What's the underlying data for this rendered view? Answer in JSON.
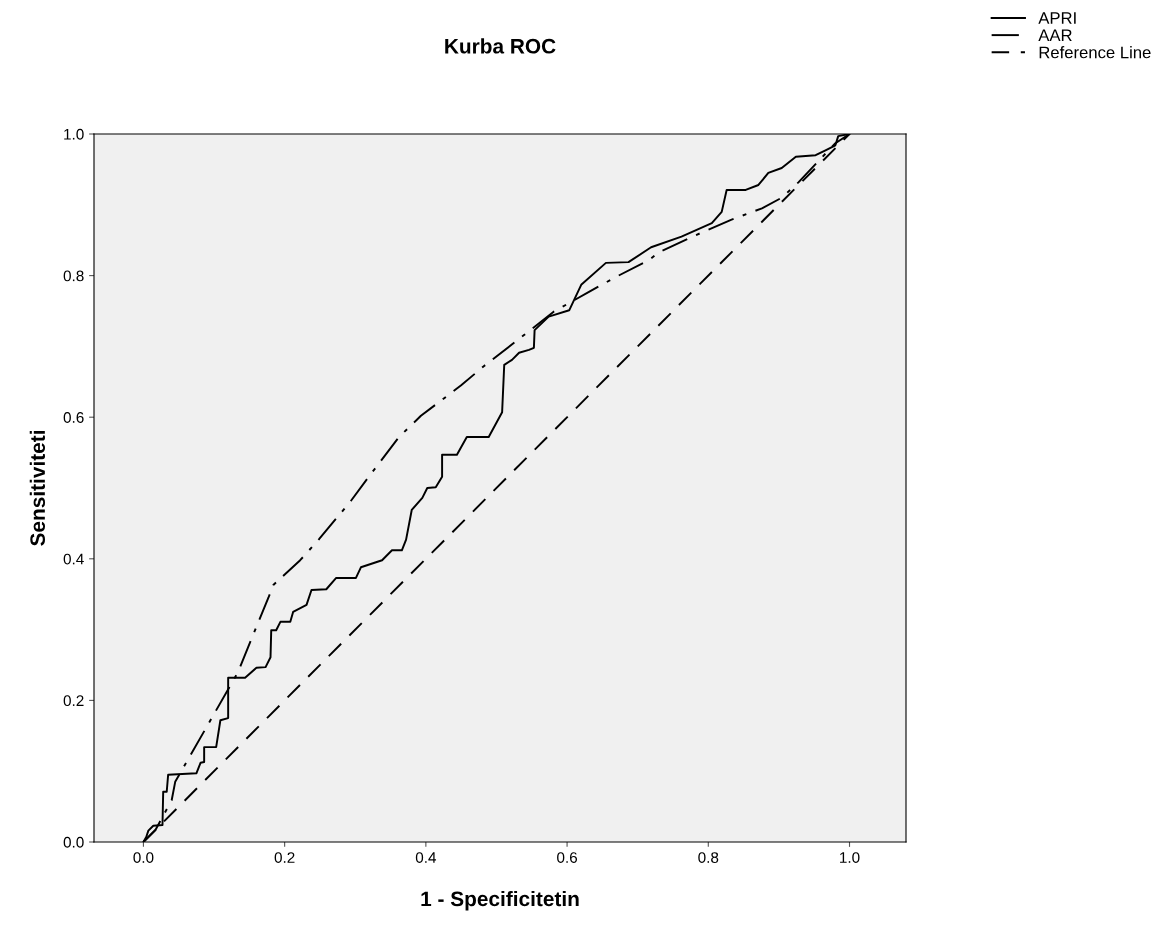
{
  "chart_data": {
    "type": "line",
    "title": "Kurba ROC",
    "xlabel": "1 - Specificitetin",
    "ylabel": "Sensitiviteti",
    "xlim": [
      -0.07,
      1.08
    ],
    "ylim": [
      0,
      1.0
    ],
    "xticks": [
      {
        "value": 0,
        "label": "0.0"
      },
      {
        "value": 0.2,
        "label": "0.2"
      },
      {
        "value": 0.4,
        "label": "0.4"
      },
      {
        "value": 0.6,
        "label": "0.6"
      },
      {
        "value": 0.8,
        "label": "0.8"
      },
      {
        "value": 1.0,
        "label": "1.0"
      }
    ],
    "yticks": [
      {
        "value": 0,
        "label": "0.0"
      },
      {
        "value": 0.2,
        "label": "0.2"
      },
      {
        "value": 0.4,
        "label": "0.4"
      },
      {
        "value": 0.6,
        "label": "0.6"
      },
      {
        "value": 0.8,
        "label": "0.8"
      },
      {
        "value": 1.0,
        "label": "1.0"
      }
    ],
    "grid": false,
    "legend": "top right",
    "marker": "none",
    "series": [
      {
        "name": "APRI",
        "color": "#000000",
        "line_style": "solid",
        "x": [
          0,
          0.004,
          0.007,
          0.014,
          0.027,
          0.028,
          0.033,
          0.035,
          0.075,
          0.081,
          0.086,
          0.086,
          0.103,
          0.109,
          0.12,
          0.12,
          0.144,
          0.16,
          0.173,
          0.18,
          0.181,
          0.188,
          0.194,
          0.208,
          0.212,
          0.231,
          0.238,
          0.259,
          0.273,
          0.301,
          0.308,
          0.338,
          0.352,
          0.366,
          0.372,
          0.38,
          0.395,
          0.402,
          0.414,
          0.423,
          0.423,
          0.444,
          0.458,
          0.489,
          0.508,
          0.511,
          0.522,
          0.532,
          0.546,
          0.553,
          0.554,
          0.574,
          0.603,
          0.62,
          0.655,
          0.687,
          0.719,
          0.762,
          0.805,
          0.819,
          0.826,
          0.853,
          0.871,
          0.885,
          0.904,
          0.924,
          0.952,
          0.966,
          0.98,
          0.984,
          1.0
        ],
        "values": [
          0,
          0.007,
          0.016,
          0.023,
          0.024,
          0.071,
          0.071,
          0.095,
          0.097,
          0.112,
          0.113,
          0.134,
          0.134,
          0.172,
          0.175,
          0.232,
          0.232,
          0.246,
          0.247,
          0.261,
          0.299,
          0.299,
          0.311,
          0.311,
          0.325,
          0.335,
          0.356,
          0.357,
          0.373,
          0.373,
          0.388,
          0.398,
          0.412,
          0.412,
          0.427,
          0.469,
          0.486,
          0.5,
          0.501,
          0.516,
          0.547,
          0.547,
          0.572,
          0.572,
          0.607,
          0.674,
          0.681,
          0.691,
          0.695,
          0.698,
          0.723,
          0.742,
          0.751,
          0.787,
          0.818,
          0.819,
          0.84,
          0.855,
          0.874,
          0.89,
          0.921,
          0.921,
          0.928,
          0.945,
          0.952,
          0.968,
          0.97,
          0.977,
          0.984,
          0.997,
          1.0
        ]
      },
      {
        "name": "AAR",
        "color": "#000000",
        "line_style": "dashdot",
        "x": [
          0,
          0.017,
          0.04,
          0.045,
          0.134,
          0.16,
          0.177,
          0.184,
          0.222,
          0.249,
          0.294,
          0.32,
          0.362,
          0.393,
          0.45,
          0.482,
          0.539,
          0.581,
          0.631,
          0.669,
          0.716,
          0.73,
          0.782,
          0.833,
          0.876,
          0.904,
          0.928,
          0.96,
          0.98,
          1.0
        ],
        "values": [
          0,
          0.017,
          0.059,
          0.085,
          0.24,
          0.304,
          0.345,
          0.363,
          0.398,
          0.428,
          0.482,
          0.517,
          0.572,
          0.602,
          0.645,
          0.672,
          0.716,
          0.749,
          0.777,
          0.798,
          0.822,
          0.833,
          0.857,
          0.879,
          0.895,
          0.91,
          0.932,
          0.966,
          0.987,
          1.0
        ]
      },
      {
        "name": "Reference Line",
        "color": "#000000",
        "line_style": "dashed",
        "x": [
          0,
          1.0
        ],
        "values": [
          0,
          1.0
        ]
      }
    ]
  }
}
